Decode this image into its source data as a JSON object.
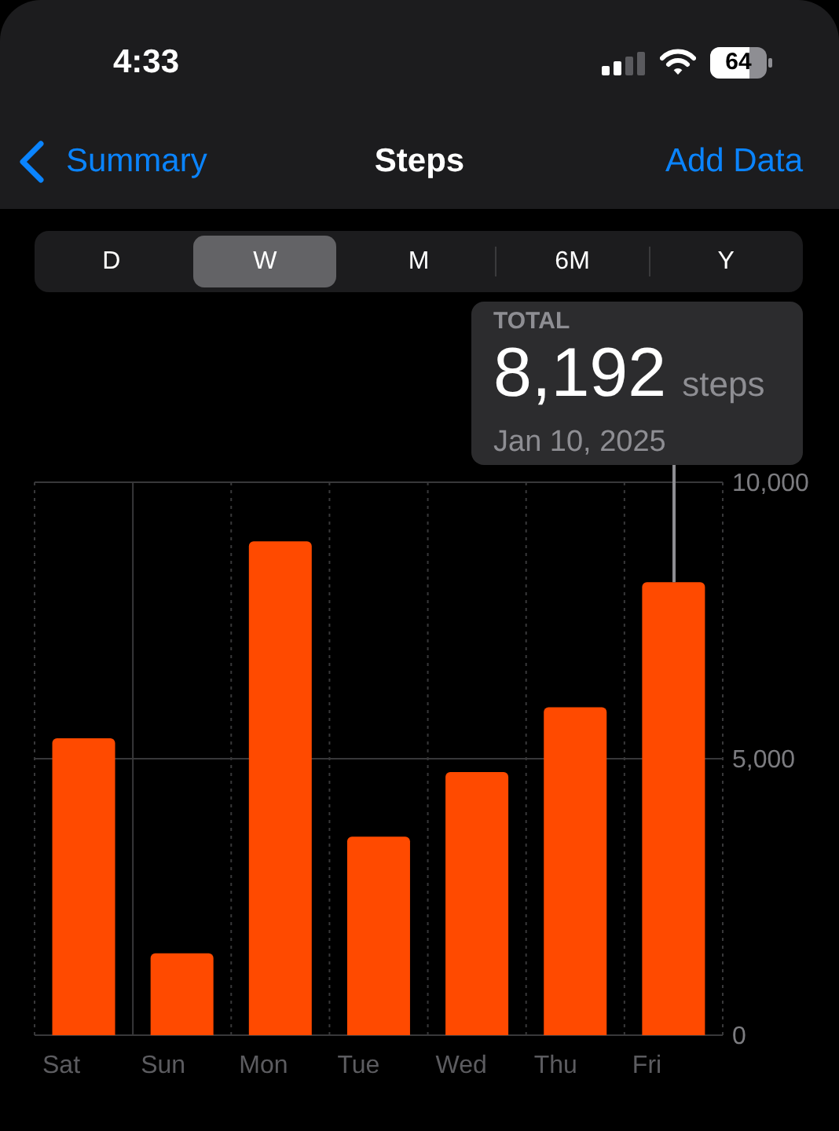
{
  "chart_data": {
    "type": "bar",
    "title": "Steps",
    "categories": [
      "Sat",
      "Sun",
      "Mon",
      "Tue",
      "Wed",
      "Thu",
      "Fri"
    ],
    "values": [
      5370,
      1480,
      8930,
      3590,
      4760,
      5930,
      8192
    ],
    "color": "#ff4a00",
    "ylim": [
      0,
      10000
    ],
    "yticks": [
      0,
      {
        "value": 5000,
        "label": "5,000"
      },
      {
        "value": 10000,
        "label": "10,000"
      }
    ],
    "grid": true,
    "annotations": [
      {
        "text": "8,192",
        "x": "Fri",
        "y": 8192
      },
      "TOTAL",
      "steps",
      "Jan 10, 2025",
      "4:33",
      "64",
      "Summary",
      "Add Data",
      "D",
      "W",
      "M",
      "6M",
      "Y"
    ]
  }
}
